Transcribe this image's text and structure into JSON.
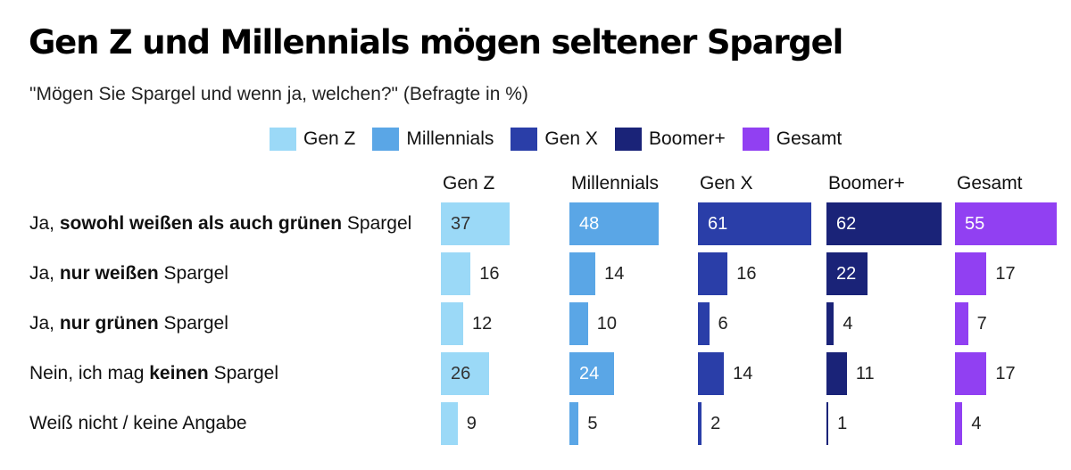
{
  "chart_data": {
    "type": "bar",
    "title": "Gen Z und Millennials mögen seltener Spargel",
    "subtitle": "\"Mögen Sie Spargel und wenn ja, welchen?\" (Befragte in %)",
    "categories": [
      [
        "Ja, ",
        "sowohl weißen als auch grünen",
        " Spargel"
      ],
      [
        "Ja, ",
        "nur weißen",
        " Spargel"
      ],
      [
        "Ja, ",
        "nur grünen",
        " Spargel"
      ],
      [
        "Nein, ich mag ",
        "keinen",
        " Spargel"
      ],
      [
        "Weiß nicht / keine Angabe",
        "",
        ""
      ]
    ],
    "series": [
      {
        "name": "Gen Z",
        "color": "#9bd9f7",
        "value_color": "#333333",
        "values": [
          37,
          16,
          12,
          26,
          9
        ]
      },
      {
        "name": "Millennials",
        "color": "#5aa6e6",
        "value_color": "#ffffff",
        "values": [
          48,
          14,
          10,
          24,
          5
        ]
      },
      {
        "name": "Gen X",
        "color": "#2a3ea8",
        "value_color": "#ffffff",
        "values": [
          61,
          16,
          6,
          14,
          2
        ]
      },
      {
        "name": "Boomer+",
        "color": "#1a2378",
        "value_color": "#ffffff",
        "values": [
          62,
          22,
          4,
          11,
          1
        ]
      },
      {
        "name": "Gesamt",
        "color": "#9140f2",
        "value_color": "#ffffff",
        "values": [
          55,
          17,
          7,
          17,
          4
        ]
      }
    ],
    "legend_position": "top",
    "grid": false
  }
}
